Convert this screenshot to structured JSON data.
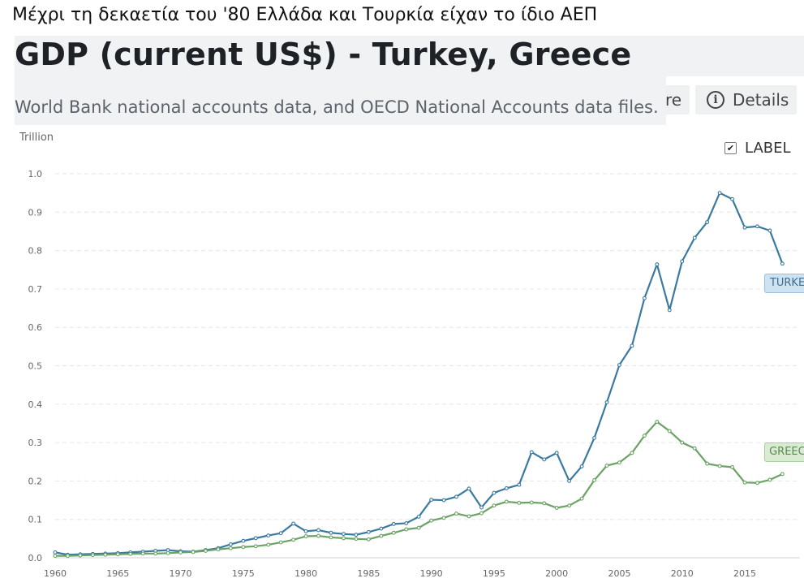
{
  "caption": "Μέχρι τη δεκαετία του '80 Ελλάδα και Τουρκία είχαν το ίδιο ΑΕΠ",
  "header": {
    "title": "GDP (current US$) - Turkey, Greece",
    "subtitle": "World Bank national accounts data, and OECD National Accounts data files.",
    "share_fragment": "re",
    "details_label": "Details"
  },
  "label_toggle": {
    "label": "LABEL",
    "checked": true
  },
  "icons": {
    "details": "info-icon",
    "toggle": "checkbox-icon"
  },
  "colors": {
    "turkey": "#3b7aa0",
    "greece": "#6aa363",
    "turkey_tag_bg": "#cfe2f0",
    "greece_tag_bg": "#d9ebd2"
  },
  "chart_data": {
    "type": "line",
    "title": "GDP (current US$) - Turkey, Greece",
    "ylabel": "Trillion",
    "xlim": [
      1960,
      2018
    ],
    "ylim": [
      0,
      1.0
    ],
    "grid": true,
    "y_ticks": [
      "0.0",
      "0.1",
      "0.2",
      "0.3",
      "0.4",
      "0.5",
      "0.6",
      "0.7",
      "0.8",
      "0.9",
      "1.0"
    ],
    "x_ticks": [
      "1960",
      "1965",
      "1970",
      "1975",
      "1980",
      "1985",
      "1990",
      "1995",
      "2000",
      "2005",
      "2010",
      "2015"
    ],
    "x": [
      1960,
      1961,
      1962,
      1963,
      1964,
      1965,
      1966,
      1967,
      1968,
      1969,
      1970,
      1971,
      1972,
      1973,
      1974,
      1975,
      1976,
      1977,
      1978,
      1979,
      1980,
      1981,
      1982,
      1983,
      1984,
      1985,
      1986,
      1987,
      1988,
      1989,
      1990,
      1991,
      1992,
      1993,
      1994,
      1995,
      1996,
      1997,
      1998,
      1999,
      2000,
      2001,
      2002,
      2003,
      2004,
      2005,
      2006,
      2007,
      2008,
      2009,
      2010,
      2011,
      2012,
      2013,
      2014,
      2015,
      2016,
      2017,
      2018
    ],
    "series": [
      {
        "name": "TURKEY",
        "values": [
          0.014,
          0.008,
          0.009,
          0.01,
          0.011,
          0.012,
          0.014,
          0.016,
          0.018,
          0.02,
          0.017,
          0.016,
          0.02,
          0.025,
          0.035,
          0.044,
          0.051,
          0.058,
          0.064,
          0.089,
          0.069,
          0.072,
          0.065,
          0.062,
          0.06,
          0.067,
          0.076,
          0.088,
          0.09,
          0.107,
          0.151,
          0.15,
          0.159,
          0.18,
          0.131,
          0.169,
          0.181,
          0.19,
          0.275,
          0.256,
          0.273,
          0.2,
          0.238,
          0.312,
          0.405,
          0.502,
          0.552,
          0.676,
          0.764,
          0.645,
          0.772,
          0.833,
          0.874,
          0.95,
          0.934,
          0.86,
          0.863,
          0.852,
          0.766
        ]
      },
      {
        "name": "GREECE",
        "values": [
          0.005,
          0.005,
          0.006,
          0.007,
          0.008,
          0.009,
          0.01,
          0.011,
          0.011,
          0.012,
          0.014,
          0.015,
          0.018,
          0.022,
          0.025,
          0.028,
          0.03,
          0.034,
          0.04,
          0.047,
          0.056,
          0.057,
          0.053,
          0.051,
          0.049,
          0.048,
          0.057,
          0.065,
          0.074,
          0.078,
          0.097,
          0.104,
          0.115,
          0.108,
          0.116,
          0.136,
          0.146,
          0.143,
          0.144,
          0.142,
          0.13,
          0.136,
          0.154,
          0.202,
          0.24,
          0.248,
          0.273,
          0.318,
          0.354,
          0.33,
          0.3,
          0.285,
          0.245,
          0.239,
          0.236,
          0.196,
          0.195,
          0.203,
          0.218
        ]
      }
    ]
  }
}
